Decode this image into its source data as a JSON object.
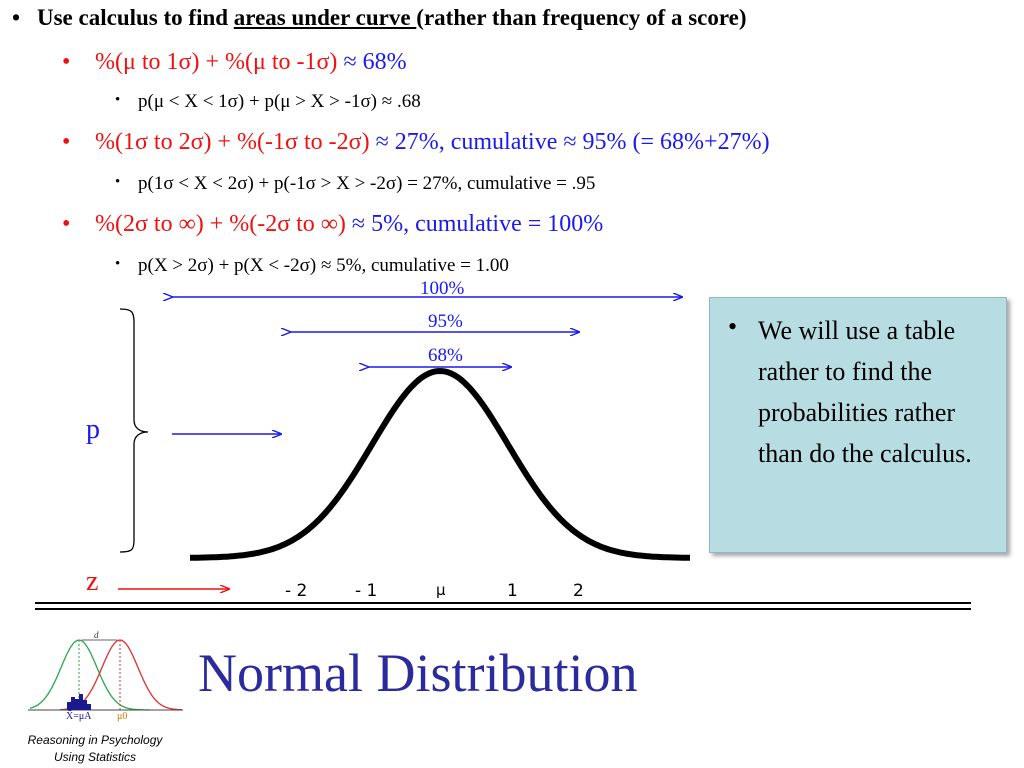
{
  "bullets": {
    "main": {
      "prefix": "Use calculus to find ",
      "underlined": "areas under curve ",
      "suffix": "(rather than frequency of a score)"
    },
    "level2_1": {
      "red": "%(μ to 1σ) + %(μ to -1σ) ",
      "blue": "≈ 68%"
    },
    "level3_1": "p(μ <  X < 1σ) + p(μ > X > -1σ) ≈ .68",
    "level2_2": {
      "red": "%(1σ to 2σ) + %(-1σ to -2σ) ",
      "blue": "≈ 27%, cumulative ≈ 95% (= 68%+27%)"
    },
    "level3_2": "p(1σ < X < 2σ) + p(-1σ > X > -2σ) = 27%, cumulative = .95",
    "level2_3": {
      "red": "%(2σ to ∞) + %(-2σ to ∞) ",
      "blue": "≈ 5%, cumulative = 100%"
    },
    "level3_3": "p(X > 2σ) + p(X < -2σ) ≈ 5%, cumulative = 1.00",
    "bullet_char": "•"
  },
  "figure": {
    "ranges": {
      "r100": "100%",
      "r95": "95%",
      "r68": "68%"
    },
    "p_label": "p",
    "z_label": "z",
    "z_ticks": [
      "- 2",
      "- 1",
      "μ",
      "1",
      "2"
    ]
  },
  "callout": {
    "bullet": "•",
    "text": "We will use a table rather to find the probabilities rather than do the calculus."
  },
  "logo": {
    "d_label": "d",
    "xbar_label": "X̄=μA",
    "mu0_label": "μ0",
    "caption_line1": "Reasoning in Psychology",
    "caption_line2": "Using Statistics"
  },
  "slide_title": "Normal Distribution",
  "colors": {
    "red": "#ee1111",
    "blue": "#1a1aee",
    "title": "#2b2b9e",
    "callout_bg": "#b7dde3"
  }
}
